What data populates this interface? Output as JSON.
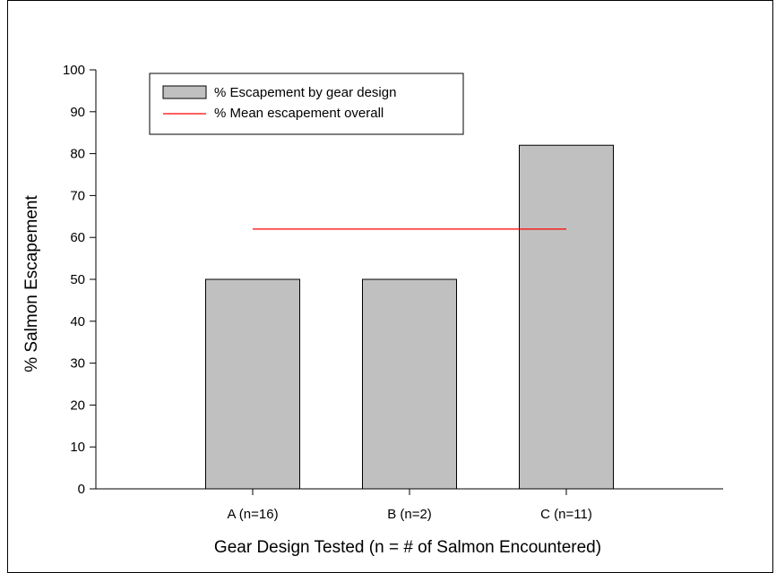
{
  "chart_data": {
    "type": "bar",
    "categories": [
      "A (n=16)",
      "B (n=2)",
      "C (n=11)"
    ],
    "series": [
      {
        "name": "% Escapement by gear design",
        "values": [
          50,
          50,
          82
        ],
        "color": "#c0c0c0"
      }
    ],
    "reference_line": {
      "name": "% Mean escapement overall",
      "value": 62,
      "color": "#ff0000"
    },
    "xlabel": "Gear Design Tested (n = # of Salmon Encountered)",
    "ylabel": "% Salmon Escapement",
    "ylim": [
      0,
      100
    ],
    "yticks": [
      0,
      10,
      20,
      30,
      40,
      50,
      60,
      70,
      80,
      90,
      100
    ],
    "grid": false,
    "legend_position": "top-left"
  }
}
